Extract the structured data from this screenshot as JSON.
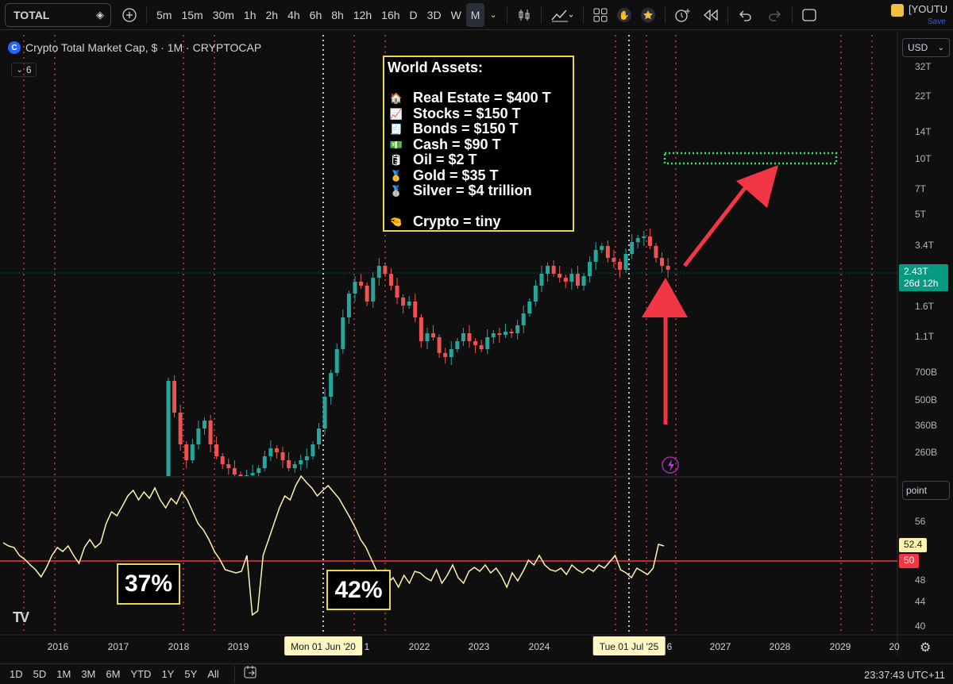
{
  "toolbar": {
    "symbol": "TOTAL",
    "intervals": [
      "5m",
      "15m",
      "30m",
      "1h",
      "2h",
      "4h",
      "6h",
      "8h",
      "12h",
      "16h",
      "D",
      "3D",
      "W",
      "M"
    ],
    "active_interval": "M",
    "account_name": "[YOUTU",
    "save_label": "Save"
  },
  "legend": {
    "title": "Crypto Total Market Cap, $ · 1M · CRYPTOCAP",
    "indicator_count": "6"
  },
  "world_assets": {
    "title": "World Assets:",
    "items": [
      {
        "icon": "house-icon",
        "glyph": "🏠",
        "label": "Real Estate = $400 T"
      },
      {
        "icon": "chart-increasing-icon",
        "glyph": "📈",
        "label": "Stocks = $150 T"
      },
      {
        "icon": "receipt-icon",
        "glyph": "🧾",
        "label": "Bonds = $150 T"
      },
      {
        "icon": "dollar-banknote-icon",
        "glyph": "💵",
        "label": "Cash = $90 T"
      },
      {
        "icon": "oil-drum-icon",
        "glyph": "🛢",
        "label": "Oil = $2 T"
      },
      {
        "icon": "gold-medal-icon",
        "glyph": "🥇",
        "label": "Gold = $35 T"
      },
      {
        "icon": "silver-medal-icon",
        "glyph": "🥈",
        "label": "Silver = $4 trillion"
      }
    ],
    "footer": {
      "icon": "pinching-hand-icon",
      "glyph": "🤏",
      "label": "Crypto = tiny"
    }
  },
  "annotations": {
    "pct_left": "37%",
    "pct_right": "42%"
  },
  "price_scale": {
    "currency": "USD",
    "labels": [
      "32T",
      "22T",
      "14T",
      "10T",
      "7T",
      "5T",
      "3.4T",
      "1.6T",
      "1.1T",
      "700B",
      "500B",
      "360B",
      "260B"
    ],
    "last_price": "2.43T",
    "countdown": "26d 12h"
  },
  "osc_scale": {
    "unit": "point",
    "labels": [
      "56",
      "48",
      "44",
      "40"
    ],
    "current": "52.4",
    "level": "50"
  },
  "time_axis": {
    "labels": [
      "2016",
      "2017",
      "2018",
      "2019",
      "2022",
      "2023",
      "2024",
      "2027",
      "2028",
      "2029",
      "20"
    ],
    "hl_left": "Mon 01 Jun '20",
    "hl_left_tail": "1",
    "hl_right": "Tue 01 Jul '25",
    "hl_right_tail": "6"
  },
  "bottom_bar": {
    "ranges": [
      "1D",
      "5D",
      "1M",
      "3M",
      "6M",
      "YTD",
      "1Y",
      "5Y",
      "All"
    ],
    "clock": "23:37:43 UTC+11"
  },
  "colors": {
    "up": "#26a69a",
    "down": "#ef5350",
    "osc": "#fff3b0",
    "level_line": "#f23645",
    "annotation_border": "#e8d94a",
    "arrow": "#f23645",
    "target_box": "#2ee86a"
  }
}
